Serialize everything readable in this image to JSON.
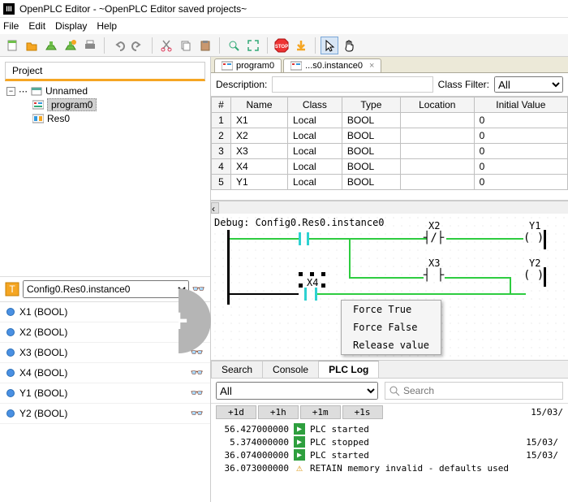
{
  "title": "OpenPLC Editor - ~OpenPLC Editor saved projects~",
  "menu": {
    "file": "File",
    "edit": "Edit",
    "display": "Display",
    "help": "Help"
  },
  "project": {
    "panel_title": "Project",
    "root": "Unnamed",
    "program": "program0",
    "res": "Res0"
  },
  "instance_selector": "Config0.Res0.instance0",
  "watch": [
    {
      "name": "X1 (BOOL)"
    },
    {
      "name": "X2 (BOOL)"
    },
    {
      "name": "X3 (BOOL)"
    },
    {
      "name": "X4 (BOOL)"
    },
    {
      "name": "Y1 (BOOL)"
    },
    {
      "name": "Y2 (BOOL)"
    }
  ],
  "tabs": [
    {
      "label": "program0",
      "active": false,
      "closable": false
    },
    {
      "label": "...s0.instance0",
      "active": true,
      "closable": true
    }
  ],
  "desc": {
    "label": "Description:",
    "class_filter_label": "Class Filter:",
    "class_filter_value": "All"
  },
  "grid": {
    "headers": [
      "#",
      "Name",
      "Class",
      "Type",
      "Location",
      "Initial Value"
    ],
    "rows": [
      {
        "n": "1",
        "name": "X1",
        "class": "Local",
        "type": "BOOL",
        "loc": "",
        "init": "0"
      },
      {
        "n": "2",
        "name": "X2",
        "class": "Local",
        "type": "BOOL",
        "loc": "",
        "init": "0"
      },
      {
        "n": "3",
        "name": "X3",
        "class": "Local",
        "type": "BOOL",
        "loc": "",
        "init": "0"
      },
      {
        "n": "4",
        "name": "X4",
        "class": "Local",
        "type": "BOOL",
        "loc": "",
        "init": "0"
      },
      {
        "n": "5",
        "name": "Y1",
        "class": "Local",
        "type": "BOOL",
        "loc": "",
        "init": "0"
      }
    ]
  },
  "ladder": {
    "debug_label": "Debug: Config0.Res0.instance0",
    "x2": "X2",
    "x3": "X3",
    "x4": "X4",
    "y1": "Y1",
    "y2": "Y2"
  },
  "ctx": {
    "force_true": "Force True",
    "force_false": "Force False",
    "release": "Release value"
  },
  "btabs": {
    "search": "Search",
    "console": "Console",
    "plclog": "PLC Log"
  },
  "log": {
    "filter": "All",
    "search_ph": "Search",
    "offsets": [
      "+1d",
      "+1h",
      "+1m",
      "+1s"
    ],
    "dates": [
      "15/03/",
      "15/03/",
      "15/03/"
    ],
    "lines": [
      {
        "ts": "56.427000000",
        "ico": "play",
        "msg": "PLC started"
      },
      {
        "ts": "5.374000000",
        "ico": "play",
        "msg": "PLC stopped"
      },
      {
        "ts": "36.074000000",
        "ico": "play",
        "msg": "PLC started"
      },
      {
        "ts": "36.073000000",
        "ico": "warn",
        "msg": "RETAIN memory invalid - defaults used"
      }
    ]
  },
  "colors": {
    "green": "#2ecc40",
    "cyan": "#2ed1d1"
  }
}
